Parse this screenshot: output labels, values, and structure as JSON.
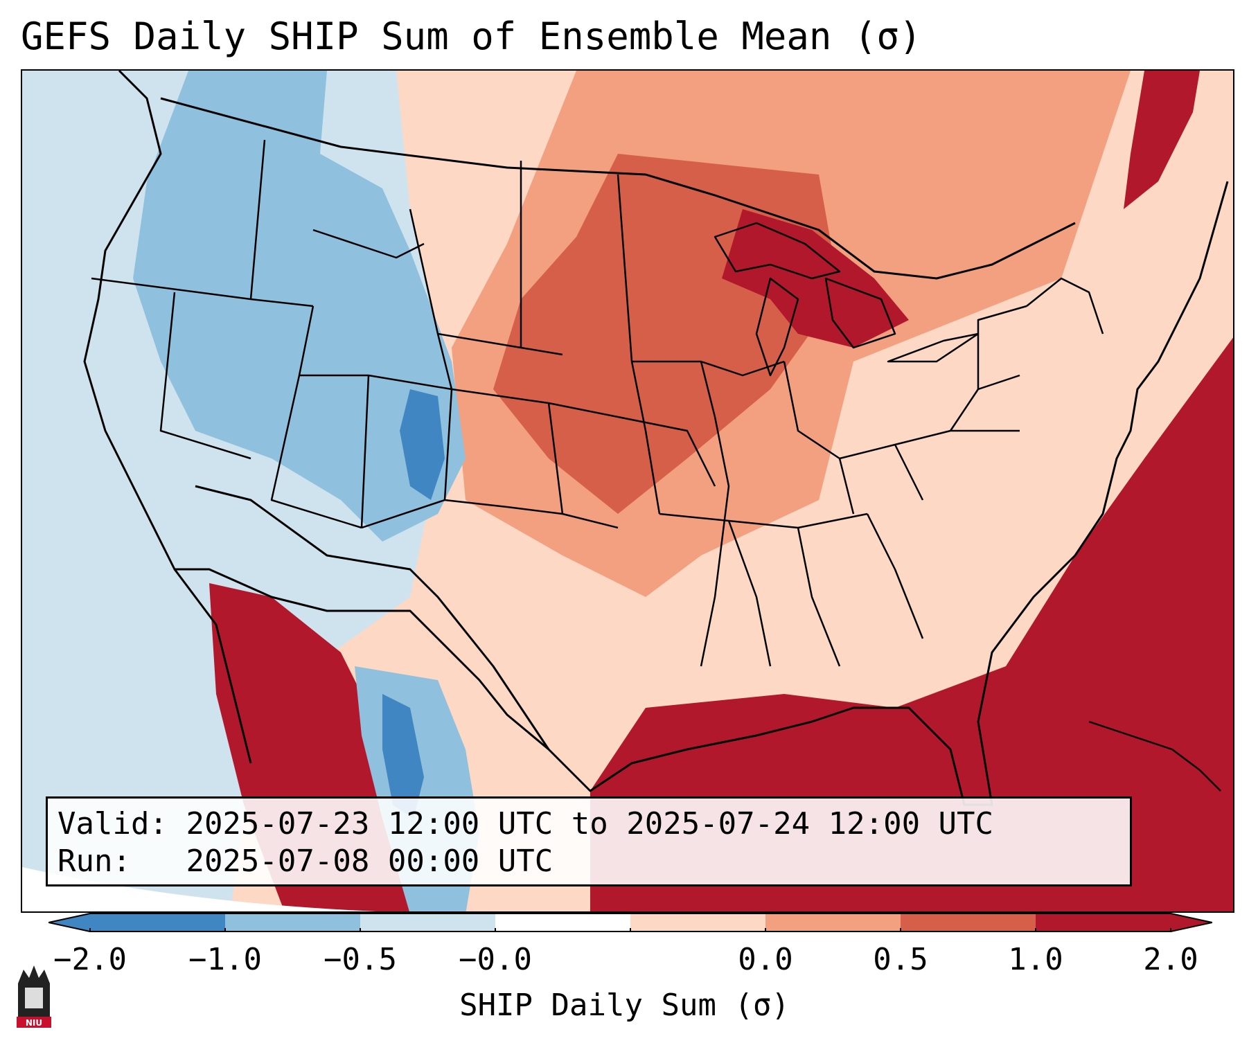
{
  "title": "GEFS Daily SHIP Sum of Ensemble Mean (σ)",
  "info": {
    "valid_label": "Valid:",
    "valid_value": "2025-07-23 12:00 UTC to 2025-07-24 12:00 UTC",
    "run_label": "Run:",
    "run_value": "2025-07-08 00:00 UTC"
  },
  "colorbar": {
    "label": "SHIP Daily Sum (σ)",
    "ticks": [
      "−2.0",
      "−1.0",
      "−0.5",
      "−0.0",
      "0.0",
      "0.5",
      "1.0",
      "2.0"
    ],
    "bin_colors": [
      "#3f86c2",
      "#8fc1de",
      "#cfe3ef",
      "#ffffff",
      "#fdd8c4",
      "#f2a07f",
      "#d65f4a",
      "#b2182b"
    ]
  },
  "logo": {
    "text": "NIU"
  },
  "map_style": {
    "ocean_west": "#cfe3ef",
    "ocean_east": "#b2182b"
  }
}
